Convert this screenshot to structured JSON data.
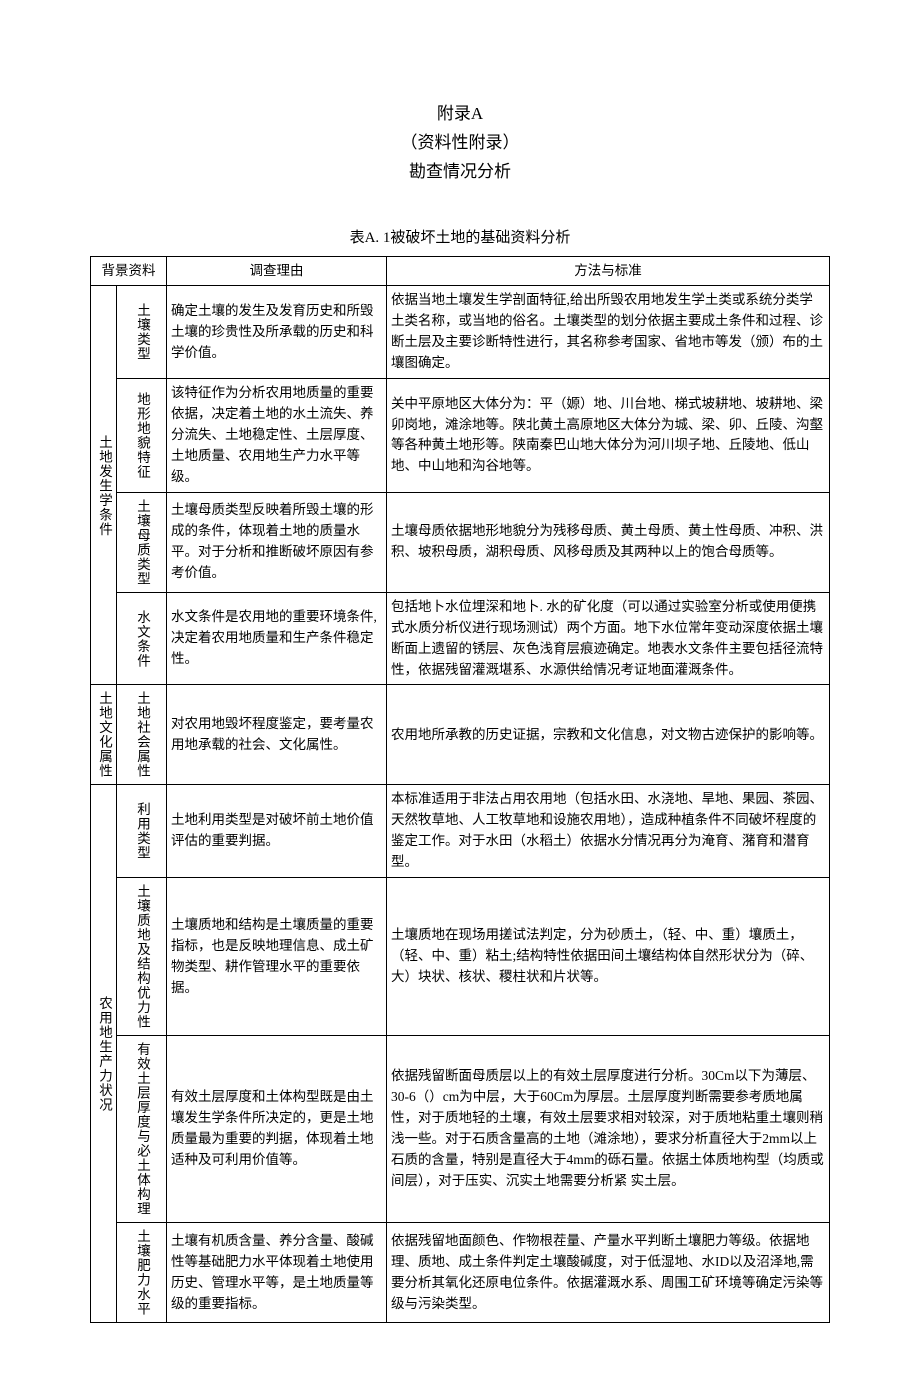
{
  "title": {
    "line1": "附录A",
    "line2": "（资料性附录）",
    "line3": "勘查情况分析"
  },
  "table_caption": "表A. 1被破坏土地的基础资料分析",
  "headers": {
    "bg": "背景资料",
    "reason": "调查理由",
    "method": "方法与标准"
  },
  "group1": {
    "name": "土地发生学条件",
    "rows": [
      {
        "sub": "土壤类型",
        "reason": "确定土壤的发生及发育历史和所毁土壤的珍贵性及所承载的历史和科学价值。",
        "method": "依据当地土壤发生学剖面特征,给出所毁农用地发生学土类或系统分类学土类名称，或当地的俗名。土壤类型的划分依据主要成土条件和过程、诊断土层及主要诊断特性进行，其名称参考国家、省地市等发（颁）布的土壤图确定。"
      },
      {
        "sub": "地形地貌特征",
        "reason": "该特征作为分析农用地质量的重要依据，决定着土地的水土流失、养分流失、土地稳定性、土层厚度、土地质量、农用地生产力水平等级。",
        "method": "关中平原地区大体分为：平（嫄）地、川台地、梯式坡耕地、坡耕地、梁卯岗地，滩涂地等。陕北黄土高原地区大体分为城、梁、卯、丘陵、沟壑等各种黄土地形等。陕南秦巴山地大体分为河川坝子地、丘陵地、低山地、中山地和沟谷地等。"
      },
      {
        "sub": "土壤母质类型",
        "reason": "土壤母质类型反映着所毁土壤的形成的条件，体现着土地的质量水平。对于分析和推断破坏原因有参考价值。",
        "method": "土壤母质依据地形地貌分为残移母质、黄土母质、黄土性母质、冲积、洪积、坡积母质，湖积母质、风移母质及其两种以上的饱合母质等。"
      },
      {
        "sub": "水文条件",
        "reason": "水文条件是农用地的重要环境条件,决定着农用地质量和生产条件稳定性。",
        "method": "包括地卜水位埋深和地卜. 水的矿化度（可以通过实验室分析或使用便携式水质分析仪进行现场测试）两个方面。地下水位常年变动深度依据土壤断面上遗留的锈层、灰色浅育层痕迹确定。地表水文条件主要包括径流特性，依据残留灌溉堪系、水源供给情况考证地面灌溉条件。"
      }
    ]
  },
  "group2": {
    "name": "土地文化属性",
    "rows": [
      {
        "sub": "土地社会属性",
        "reason": "对农用地毁坏程度鉴定，要考量农用地承载的社会、文化属性。",
        "method": "农用地所承教的历史证据，宗教和文化信息，对文物古迹保护的影响等。"
      }
    ]
  },
  "group3": {
    "name": "农用地生产力状况",
    "rows": [
      {
        "sub": "利用类型",
        "reason": "土地利用类型是对破坏前土地价值评估的重要判据。",
        "method": "本标准适用于非法占用农用地（包括水田、水浇地、旱地、果园、茶园、天然牧草地、人工牧草地和设施农用地），造成种植条件不同破坏程度的鉴定工作。对于水田（水稻土）依据水分情况再分为淹育、潴育和潜育型。"
      },
      {
        "sub": "土壤质地及结构优力性",
        "reason": "土壤质地和结构是土壤质量的重要指标，也是反映地理信息、成土矿物类型、耕作管理水平的重要依据。",
        "method": "土壤质地在现场用搓试法判定，分为砂质土，（轻、中、重）壤质土，（轻、中、重）粘土;结构特性依据田间土壤结构体自然形状分为（碎、大）块状、核状、稷柱状和片状等。"
      },
      {
        "sub": "有效土层厚度与必土体构理",
        "reason": "有效土层厚度和土体构型既是由土壤发生学条件所决定的，更是土地质量最为重要的判据，体现着土地适种及可利用价值等。",
        "method": "依据残留断面母质层以上的有效土层厚度进行分析。30Cm以下为薄层、30-6（）cm为中层，大于60Cm为厚层。土层厚度判断需要参考质地属性，对于质地轻的土壤，有效土层要求相对较深，对于质地粘重土壤则稍浅一些。对于石质含量高的土地（滩涂地），要求分析直径大于2mm以上石质的含量，特别是直径大于4mm的砾石量。依据土体质地构型（均质或间层），对于压实、沉实土地需要分析紧\n实土层。"
      },
      {
        "sub": "土壤肥力水平",
        "reason": "土壤有机质含量、养分含量、酸碱性等基础肥力水平体现着土地使用历史、管理水平等，是土地质量等级的重要指标。",
        "method": "依据残留地面颜色、作物根茬量、产量水平判断土壤肥力等级。依据地理、质地、成土条件判定土壤酸碱度，对于低湿地、水ID以及沼泽地,需要分析其氧化还原电位条件。依据灌溉水系、周围工矿环境等确定污染等级与污染类型。"
      }
    ]
  }
}
